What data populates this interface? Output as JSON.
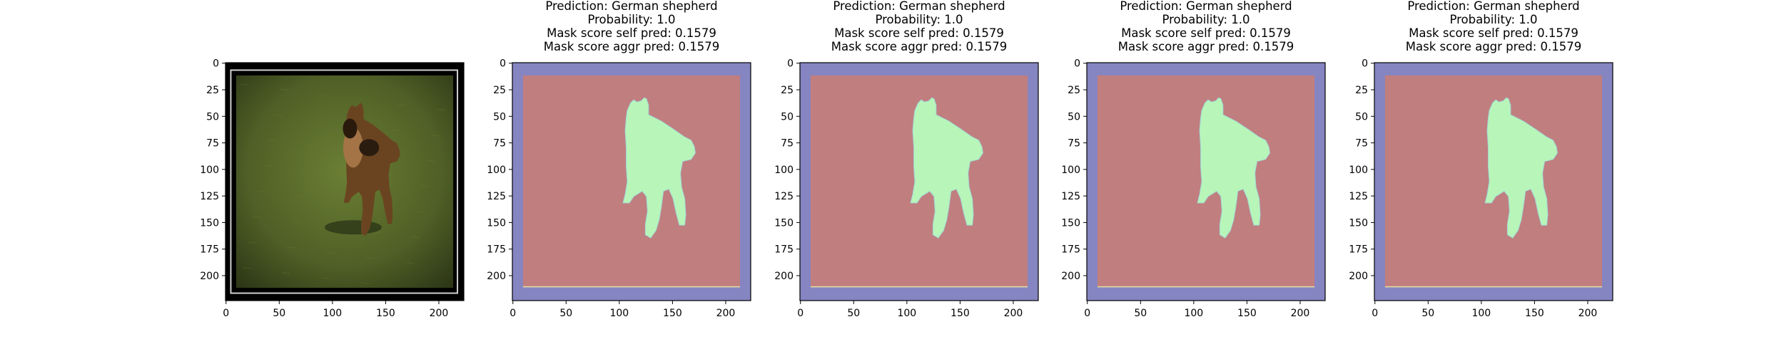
{
  "figure": {
    "panels": [
      {
        "kind": "photo",
        "title_lines": [],
        "x_ticks": [
          "0",
          "50",
          "100",
          "150",
          "200"
        ],
        "y_ticks": [
          "0",
          "25",
          "50",
          "75",
          "100",
          "125",
          "150",
          "175",
          "200"
        ]
      },
      {
        "kind": "mask",
        "title_lines": [
          "Prediction: German shepherd",
          "Probability: 1.0",
          "Mask score self pred: 0.1579",
          "Mask score aggr pred: 0.1579"
        ],
        "x_ticks": [
          "0",
          "50",
          "100",
          "150",
          "200"
        ],
        "y_ticks": [
          "0",
          "25",
          "50",
          "75",
          "100",
          "125",
          "150",
          "175",
          "200"
        ]
      },
      {
        "kind": "mask",
        "title_lines": [
          "Prediction: German shepherd",
          "Probability: 1.0",
          "Mask score self pred: 0.1579",
          "Mask score aggr pred: 0.1579"
        ],
        "x_ticks": [
          "0",
          "50",
          "100",
          "150",
          "200"
        ],
        "y_ticks": [
          "0",
          "25",
          "50",
          "75",
          "100",
          "125",
          "150",
          "175",
          "200"
        ]
      },
      {
        "kind": "mask",
        "title_lines": [
          "Prediction: German shepherd",
          "Probability: 1.0",
          "Mask score self pred: 0.1579",
          "Mask score aggr pred: 0.1579"
        ],
        "x_ticks": [
          "0",
          "50",
          "100",
          "150",
          "200"
        ],
        "y_ticks": [
          "0",
          "25",
          "50",
          "75",
          "100",
          "125",
          "150",
          "175",
          "200"
        ]
      },
      {
        "kind": "mask",
        "title_lines": [
          "Prediction: German shepherd",
          "Probability: 1.0",
          "Mask score self pred: 0.1579",
          "Mask score aggr pred: 0.1579"
        ],
        "x_ticks": [
          "0",
          "50",
          "100",
          "150",
          "200"
        ],
        "y_ticks": [
          "0",
          "25",
          "50",
          "75",
          "100",
          "125",
          "150",
          "175",
          "200"
        ]
      }
    ],
    "colors": {
      "mask_border": "#8585c2",
      "mask_region": "#c17e7e",
      "mask_dog": "#b8f5b8",
      "photo_frame": "#000000",
      "grass_dark": "#3c4a20",
      "grass_light": "#6b7f34"
    }
  },
  "chart_data": [
    {
      "type": "heatmap",
      "content": "input image",
      "x_ticks": [
        0,
        50,
        100,
        150,
        200
      ],
      "y_ticks": [
        0,
        25,
        50,
        75,
        100,
        125,
        150,
        175,
        200
      ],
      "xlim": [
        0,
        224
      ],
      "ylim": [
        224,
        0
      ]
    },
    {
      "type": "heatmap",
      "content": "mask",
      "title": "Prediction: German shepherd / Probability: 1.0 / Mask score self pred: 0.1579 / Mask score aggr pred: 0.1579",
      "x_ticks": [
        0,
        50,
        100,
        150,
        200
      ],
      "y_ticks": [
        0,
        25,
        50,
        75,
        100,
        125,
        150,
        175,
        200
      ],
      "xlim": [
        0,
        224
      ],
      "ylim": [
        224,
        0
      ]
    },
    {
      "type": "heatmap",
      "content": "mask",
      "title": "Prediction: German shepherd / Probability: 1.0 / Mask score self pred: 0.1579 / Mask score aggr pred: 0.1579",
      "x_ticks": [
        0,
        50,
        100,
        150,
        200
      ],
      "y_ticks": [
        0,
        25,
        50,
        75,
        100,
        125,
        150,
        175,
        200
      ],
      "xlim": [
        0,
        224
      ],
      "ylim": [
        224,
        0
      ]
    },
    {
      "type": "heatmap",
      "content": "mask",
      "title": "Prediction: German shepherd / Probability: 1.0 / Mask score self pred: 0.1579 / Mask score aggr pred: 0.1579",
      "x_ticks": [
        0,
        50,
        100,
        150,
        200
      ],
      "y_ticks": [
        0,
        25,
        50,
        75,
        100,
        125,
        150,
        175,
        200
      ],
      "xlim": [
        0,
        224
      ],
      "ylim": [
        224,
        0
      ]
    },
    {
      "type": "heatmap",
      "content": "mask",
      "title": "Prediction: German shepherd / Probability: 1.0 / Mask score self pred: 0.1579 / Mask score aggr pred: 0.1579",
      "x_ticks": [
        0,
        50,
        100,
        150,
        200
      ],
      "y_ticks": [
        0,
        25,
        50,
        75,
        100,
        125,
        150,
        175,
        200
      ],
      "xlim": [
        0,
        224
      ],
      "ylim": [
        224,
        0
      ]
    }
  ]
}
